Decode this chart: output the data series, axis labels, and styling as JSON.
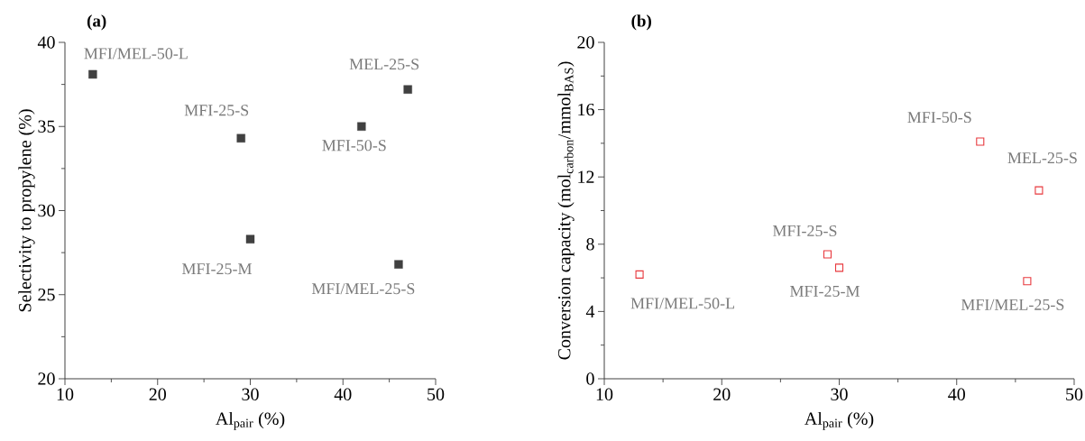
{
  "chart_data": [
    {
      "type": "scatter",
      "title": "(a)",
      "xlabel": "Al$_{pair}$ (%)",
      "ylabel": "Selectivity to propylene (%)",
      "x": [
        13,
        29,
        30,
        42,
        46,
        47
      ],
      "series": [
        {
          "color": "#404040",
          "values": [
            38.1,
            34.3,
            28.3,
            35.0,
            26.8,
            37.2
          ]
        }
      ],
      "marker": "square",
      "xlim": [
        10,
        50
      ],
      "xticks": [
        10,
        20,
        30,
        40,
        50
      ],
      "ylim": [
        20,
        40
      ],
      "yticks": [
        20,
        25,
        30,
        35,
        40
      ],
      "annotations": [
        {
          "text": "MFI/MEL-50-L",
          "x": 13,
          "y": 38.1
        },
        {
          "text": "MFI-25-S",
          "x": 29,
          "y": 34.3
        },
        {
          "text": "MFI-25-M",
          "x": 30,
          "y": 28.3
        },
        {
          "text": "MFI-50-S",
          "x": 42,
          "y": 35.0
        },
        {
          "text": "MFI/MEL-25-S",
          "x": 46,
          "y": 26.8
        },
        {
          "text": "MEL-25-S",
          "x": 47,
          "y": 37.2
        }
      ]
    },
    {
      "type": "scatter",
      "title": "(b)",
      "xlabel": "Al$_{pair}$ (%)",
      "ylabel": "Conversion capacity (mol$_{carbon}$/mmol$_{BAS}$)",
      "x": [
        13,
        29,
        30,
        42,
        46,
        47
      ],
      "series": [
        {
          "color": "#e8383d",
          "values": [
            6.2,
            7.4,
            6.6,
            14.1,
            5.8,
            11.2
          ]
        }
      ],
      "marker": "square",
      "xlim": [
        10,
        50
      ],
      "xticks": [
        10,
        20,
        30,
        40,
        50
      ],
      "ylim": [
        0,
        20
      ],
      "yticks": [
        0,
        4,
        8,
        12,
        16,
        20
      ],
      "annotations": [
        {
          "text": "MFI/MEL-50-L",
          "x": 13,
          "y": 6.2
        },
        {
          "text": "MFI-25-S",
          "x": 29,
          "y": 7.4
        },
        {
          "text": "MFI-25-M",
          "x": 30,
          "y": 6.6
        },
        {
          "text": "MFI-50-S",
          "x": 42,
          "y": 14.1
        },
        {
          "text": "MFI/MEL-25-S",
          "x": 46,
          "y": 5.8
        },
        {
          "text": "MEL-25-S",
          "x": 47,
          "y": 11.2
        }
      ]
    }
  ]
}
